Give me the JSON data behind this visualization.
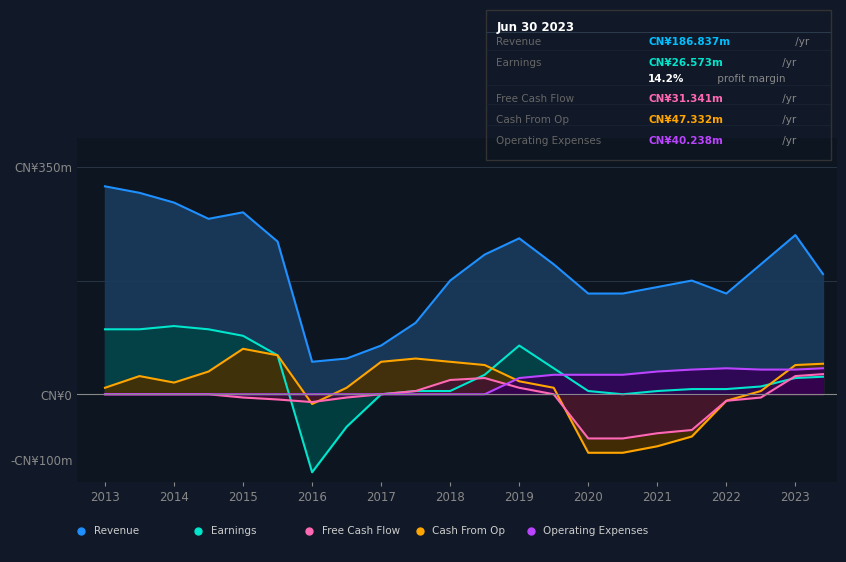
{
  "bg_color": "#111827",
  "plot_bg_color": "#0d1520",
  "title_box": {
    "date": "Jun 30 2023",
    "rows": [
      {
        "label": "Revenue",
        "value": "CN¥186.837m",
        "suffix": " /yr",
        "color": "#00bfff",
        "bold_val": true
      },
      {
        "label": "Earnings",
        "value": "CN¥26.573m",
        "suffix": " /yr",
        "color": "#00e5cc",
        "bold_val": true
      },
      {
        "label": "",
        "value": "14.2%",
        "suffix": " profit margin",
        "color": "#ffffff",
        "bold_val": true
      },
      {
        "label": "Free Cash Flow",
        "value": "CN¥31.341m",
        "suffix": " /yr",
        "color": "#ff69b4",
        "bold_val": true
      },
      {
        "label": "Cash From Op",
        "value": "CN¥47.332m",
        "suffix": " /yr",
        "color": "#ffa500",
        "bold_val": true
      },
      {
        "label": "Operating Expenses",
        "value": "CN¥40.238m",
        "suffix": " /yr",
        "color": "#bb44ff",
        "bold_val": true
      }
    ]
  },
  "series": {
    "Revenue": {
      "color": "#1e90ff",
      "fill_color": "#1a3a5c",
      "data_x": [
        2013,
        2013.5,
        2014,
        2014.5,
        2015,
        2015.5,
        2016,
        2016.5,
        2017,
        2017.5,
        2018,
        2018.5,
        2019,
        2019.5,
        2020,
        2020.5,
        2021,
        2021.5,
        2022,
        2022.5,
        2023,
        2023.4
      ],
      "data_y": [
        320,
        310,
        295,
        270,
        280,
        235,
        50,
        55,
        75,
        110,
        175,
        215,
        240,
        200,
        155,
        155,
        165,
        175,
        155,
        200,
        245,
        185
      ]
    },
    "Earnings": {
      "color": "#00e5cc",
      "fill_color": "#004444",
      "data_x": [
        2013,
        2013.5,
        2014,
        2014.5,
        2015,
        2015.5,
        2016,
        2016.5,
        2017,
        2017.5,
        2018,
        2018.5,
        2019,
        2019.5,
        2020,
        2020.5,
        2021,
        2021.5,
        2022,
        2022.5,
        2023,
        2023.4
      ],
      "data_y": [
        100,
        100,
        105,
        100,
        90,
        60,
        -120,
        -50,
        0,
        5,
        5,
        30,
        75,
        40,
        5,
        0,
        5,
        8,
        8,
        12,
        25,
        27
      ]
    },
    "CashFromOp": {
      "color": "#ffa500",
      "fill_color": "#4a3000",
      "data_x": [
        2013,
        2013.5,
        2014,
        2014.5,
        2015,
        2015.5,
        2016,
        2016.5,
        2017,
        2017.5,
        2018,
        2018.5,
        2019,
        2019.5,
        2020,
        2020.5,
        2021,
        2021.5,
        2022,
        2022.5,
        2023,
        2023.4
      ],
      "data_y": [
        10,
        28,
        18,
        35,
        70,
        60,
        -15,
        10,
        50,
        55,
        50,
        45,
        20,
        10,
        -90,
        -90,
        -80,
        -65,
        -10,
        5,
        45,
        47
      ]
    },
    "FreeCashFlow": {
      "color": "#ff69b4",
      "fill_color": "#441133",
      "data_x": [
        2013,
        2013.5,
        2014,
        2014.5,
        2015,
        2015.5,
        2016,
        2016.5,
        2017,
        2017.5,
        2018,
        2018.5,
        2019,
        2019.5,
        2020,
        2020.5,
        2021,
        2021.5,
        2022,
        2022.5,
        2023,
        2023.4
      ],
      "data_y": [
        0,
        0,
        0,
        0,
        -5,
        -8,
        -12,
        -5,
        0,
        5,
        22,
        25,
        10,
        0,
        -68,
        -68,
        -60,
        -55,
        -10,
        -5,
        28,
        31
      ]
    },
    "OperatingExpenses": {
      "color": "#bb44ff",
      "fill_color": "#330055",
      "data_x": [
        2013,
        2013.5,
        2014,
        2014.5,
        2015,
        2015.5,
        2016,
        2016.5,
        2017,
        2017.5,
        2018,
        2018.5,
        2019,
        2019.5,
        2020,
        2020.5,
        2021,
        2021.5,
        2022,
        2022.5,
        2023,
        2023.4
      ],
      "data_y": [
        0,
        0,
        0,
        0,
        0,
        0,
        0,
        0,
        0,
        0,
        0,
        0,
        25,
        30,
        30,
        30,
        35,
        38,
        40,
        38,
        38,
        40
      ]
    }
  },
  "ylim": [
    -135,
    395
  ],
  "yticks": [
    -100,
    0,
    350
  ],
  "ytick_labels": [
    "-CN¥100m",
    "CN¥0",
    "CN¥350m"
  ],
  "xlim": [
    2012.6,
    2023.6
  ],
  "xticks": [
    2013,
    2014,
    2015,
    2016,
    2017,
    2018,
    2019,
    2020,
    2021,
    2022,
    2023
  ],
  "legend": [
    {
      "label": "Revenue",
      "color": "#1e90ff"
    },
    {
      "label": "Earnings",
      "color": "#00e5cc"
    },
    {
      "label": "Free Cash Flow",
      "color": "#ff69b4"
    },
    {
      "label": "Cash From Op",
      "color": "#ffa500"
    },
    {
      "label": "Operating Expenses",
      "color": "#bb44ff"
    }
  ]
}
